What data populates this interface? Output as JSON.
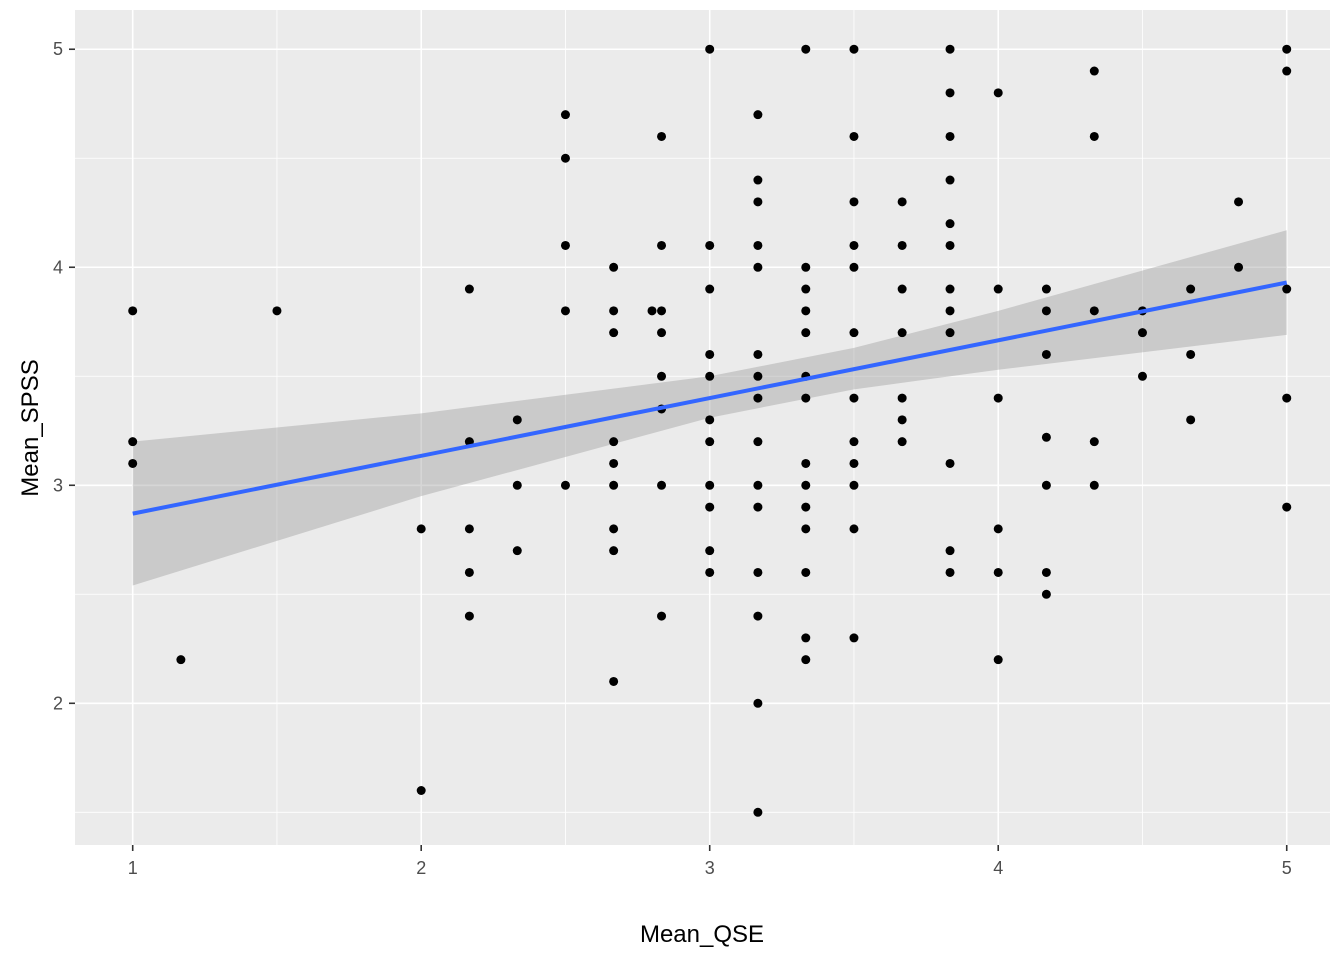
{
  "chart_data": {
    "type": "scatter",
    "xlabel": "Mean_QSE",
    "ylabel": "Mean_SPSS",
    "xlim": [
      0.8,
      5.15
    ],
    "ylim": [
      1.35,
      5.18
    ],
    "x_ticks": [
      1,
      2,
      3,
      4,
      5
    ],
    "x_minor": [
      1.5,
      2.5,
      3.5,
      4.5
    ],
    "y_ticks": [
      2,
      3,
      4,
      5
    ],
    "y_minor": [
      1.5,
      2.5,
      3.5,
      4.5
    ],
    "grid": true,
    "colors": {
      "panel": "#ebebeb",
      "grid": "#ffffff",
      "points": "#000000",
      "fit_line": "#3366ff",
      "confidence_band": "#999999"
    },
    "points": [
      [
        1,
        3.8
      ],
      [
        1,
        3.2
      ],
      [
        1,
        3.1
      ],
      [
        1.167,
        2.2
      ],
      [
        1.5,
        3.8
      ],
      [
        2,
        2.8
      ],
      [
        2,
        1.6
      ],
      [
        2.167,
        3.9
      ],
      [
        2.167,
        3.2
      ],
      [
        2.167,
        2.8
      ],
      [
        2.167,
        2.6
      ],
      [
        2.167,
        2.4
      ],
      [
        2.333,
        3.3
      ],
      [
        2.333,
        3.0
      ],
      [
        2.333,
        2.7
      ],
      [
        2.5,
        4.7
      ],
      [
        2.5,
        4.5
      ],
      [
        2.5,
        4.1
      ],
      [
        2.5,
        3.8
      ],
      [
        2.5,
        3.0
      ],
      [
        2.667,
        4.0
      ],
      [
        2.667,
        3.8
      ],
      [
        2.667,
        3.7
      ],
      [
        2.667,
        3.2
      ],
      [
        2.667,
        3.1
      ],
      [
        2.667,
        3.0
      ],
      [
        2.667,
        2.8
      ],
      [
        2.667,
        2.7
      ],
      [
        2.667,
        2.1
      ],
      [
        2.8,
        3.8
      ],
      [
        2.833,
        4.6
      ],
      [
        2.833,
        4.1
      ],
      [
        2.833,
        3.8
      ],
      [
        2.833,
        3.7
      ],
      [
        2.833,
        3.5
      ],
      [
        2.833,
        3.35
      ],
      [
        2.833,
        3.0
      ],
      [
        2.833,
        2.4
      ],
      [
        3,
        5.0
      ],
      [
        3,
        4.1
      ],
      [
        3,
        3.9
      ],
      [
        3,
        3.6
      ],
      [
        3,
        3.5
      ],
      [
        3,
        3.3
      ],
      [
        3,
        3.2
      ],
      [
        3,
        3.0
      ],
      [
        3,
        2.9
      ],
      [
        3,
        2.7
      ],
      [
        3,
        2.6
      ],
      [
        3.167,
        4.7
      ],
      [
        3.167,
        4.4
      ],
      [
        3.167,
        4.3
      ],
      [
        3.167,
        4.1
      ],
      [
        3.167,
        4.0
      ],
      [
        3.167,
        3.6
      ],
      [
        3.167,
        3.5
      ],
      [
        3.167,
        3.4
      ],
      [
        3.167,
        3.2
      ],
      [
        3.167,
        3.0
      ],
      [
        3.167,
        2.9
      ],
      [
        3.167,
        2.6
      ],
      [
        3.167,
        2.4
      ],
      [
        3.167,
        2.0
      ],
      [
        3.167,
        1.5
      ],
      [
        3.333,
        5.0
      ],
      [
        3.333,
        4.0
      ],
      [
        3.333,
        3.9
      ],
      [
        3.333,
        3.8
      ],
      [
        3.333,
        3.7
      ],
      [
        3.333,
        3.5
      ],
      [
        3.333,
        3.4
      ],
      [
        3.333,
        3.1
      ],
      [
        3.333,
        3.0
      ],
      [
        3.333,
        2.9
      ],
      [
        3.333,
        2.8
      ],
      [
        3.333,
        2.6
      ],
      [
        3.333,
        2.3
      ],
      [
        3.333,
        2.2
      ],
      [
        3.5,
        5.0
      ],
      [
        3.5,
        4.6
      ],
      [
        3.5,
        4.3
      ],
      [
        3.5,
        4.1
      ],
      [
        3.5,
        4.0
      ],
      [
        3.5,
        3.7
      ],
      [
        3.5,
        3.4
      ],
      [
        3.5,
        3.2
      ],
      [
        3.5,
        3.1
      ],
      [
        3.5,
        3.0
      ],
      [
        3.5,
        2.8
      ],
      [
        3.5,
        2.3
      ],
      [
        3.667,
        4.3
      ],
      [
        3.667,
        4.1
      ],
      [
        3.667,
        3.9
      ],
      [
        3.667,
        3.7
      ],
      [
        3.667,
        3.4
      ],
      [
        3.667,
        3.3
      ],
      [
        3.667,
        3.2
      ],
      [
        3.833,
        5.0
      ],
      [
        3.833,
        4.8
      ],
      [
        3.833,
        4.6
      ],
      [
        3.833,
        4.4
      ],
      [
        3.833,
        4.2
      ],
      [
        3.833,
        4.1
      ],
      [
        3.833,
        3.9
      ],
      [
        3.833,
        3.8
      ],
      [
        3.833,
        3.7
      ],
      [
        3.833,
        3.1
      ],
      [
        3.833,
        2.7
      ],
      [
        3.833,
        2.6
      ],
      [
        4,
        4.8
      ],
      [
        4,
        3.9
      ],
      [
        4,
        3.4
      ],
      [
        4,
        2.8
      ],
      [
        4,
        2.6
      ],
      [
        4,
        2.2
      ],
      [
        4.167,
        3.9
      ],
      [
        4.167,
        3.8
      ],
      [
        4.167,
        3.6
      ],
      [
        4.167,
        3.22
      ],
      [
        4.167,
        3.0
      ],
      [
        4.167,
        2.6
      ],
      [
        4.167,
        2.5
      ],
      [
        4.333,
        4.9
      ],
      [
        4.333,
        4.6
      ],
      [
        4.333,
        3.8
      ],
      [
        4.333,
        3.2
      ],
      [
        4.333,
        3.0
      ],
      [
        4.5,
        3.8
      ],
      [
        4.5,
        3.7
      ],
      [
        4.5,
        3.5
      ],
      [
        4.667,
        3.9
      ],
      [
        4.667,
        3.6
      ],
      [
        4.667,
        3.3
      ],
      [
        4.833,
        4.3
      ],
      [
        4.833,
        4.0
      ],
      [
        5,
        5.0
      ],
      [
        5,
        4.9
      ],
      [
        5,
        3.9
      ],
      [
        5,
        3.4
      ],
      [
        5,
        2.9
      ]
    ],
    "regression": {
      "x": [
        1,
        5
      ],
      "y": [
        2.87,
        3.93
      ],
      "band_x": [
        1,
        2,
        3,
        3.5,
        4,
        5
      ],
      "band_lower": [
        2.54,
        2.95,
        3.31,
        3.44,
        3.53,
        3.69
      ],
      "band_upper": [
        3.2,
        3.33,
        3.5,
        3.63,
        3.8,
        4.17
      ]
    }
  }
}
